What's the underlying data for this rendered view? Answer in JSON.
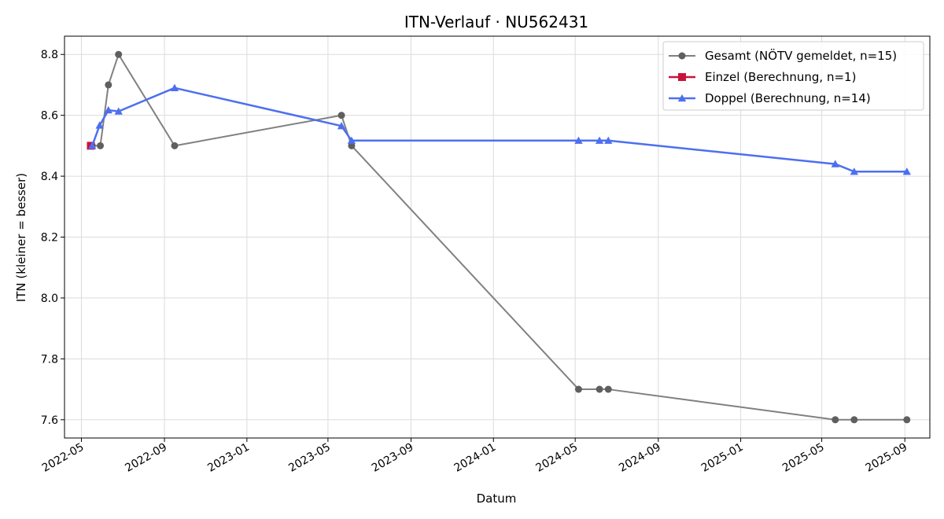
{
  "chart_data": {
    "type": "line",
    "title": "ITN-Verlauf · NU562431",
    "xlabel": "Datum",
    "ylabel": "ITN  (kleiner = besser)",
    "x_type": "date",
    "xlim": [
      "2022-04-06",
      "2025-10-08"
    ],
    "ylim": [
      7.54,
      8.86
    ],
    "x_ticks": [
      "2022-05-01",
      "2022-09-01",
      "2023-01-01",
      "2023-05-01",
      "2023-09-01",
      "2024-01-01",
      "2024-05-01",
      "2024-09-01",
      "2025-01-01",
      "2025-05-01",
      "2025-09-01"
    ],
    "x_tick_labels": [
      "2022-05",
      "2022-09",
      "2023-01",
      "2023-05",
      "2023-09",
      "2024-01",
      "2024-05",
      "2024-09",
      "2025-01",
      "2025-05",
      "2025-09"
    ],
    "y_ticks": [
      7.6,
      7.8,
      8.0,
      8.2,
      8.4,
      8.6,
      8.8
    ],
    "y_tick_labels": [
      "7.6",
      "7.8",
      "8.0",
      "8.2",
      "8.4",
      "8.6",
      "8.8"
    ],
    "grid": true,
    "legend_position": "top-right",
    "series": [
      {
        "name": "Gesamt (NÖTV gemeldet, n=15)",
        "color": "#808080",
        "marker": "circle",
        "points": [
          {
            "x": "2022-05-17",
            "y": 8.5
          },
          {
            "x": "2022-05-29",
            "y": 8.5
          },
          {
            "x": "2022-06-10",
            "y": 8.7
          },
          {
            "x": "2022-06-25",
            "y": 8.8
          },
          {
            "x": "2022-09-16",
            "y": 8.5
          },
          {
            "x": "2023-05-21",
            "y": 8.6
          },
          {
            "x": "2023-06-05",
            "y": 8.5
          },
          {
            "x": "2024-05-06",
            "y": 7.7
          },
          {
            "x": "2024-06-06",
            "y": 7.7
          },
          {
            "x": "2024-06-19",
            "y": 7.7
          },
          {
            "x": "2025-05-21",
            "y": 7.6
          },
          {
            "x": "2025-06-18",
            "y": 7.6
          },
          {
            "x": "2025-09-04",
            "y": 7.6
          }
        ]
      },
      {
        "name": "Einzel (Berechnung, n=1)",
        "color": "#c8143c",
        "marker": "square",
        "points": [
          {
            "x": "2022-05-15",
            "y": 8.5
          }
        ]
      },
      {
        "name": "Doppel (Berechnung, n=14)",
        "color": "#4d6fef",
        "marker": "triangle",
        "points": [
          {
            "x": "2022-05-17",
            "y": 8.5
          },
          {
            "x": "2022-05-28",
            "y": 8.567
          },
          {
            "x": "2022-06-10",
            "y": 8.617
          },
          {
            "x": "2022-06-25",
            "y": 8.613
          },
          {
            "x": "2022-09-16",
            "y": 8.69
          },
          {
            "x": "2023-05-21",
            "y": 8.565
          },
          {
            "x": "2023-06-05",
            "y": 8.517
          },
          {
            "x": "2024-05-06",
            "y": 8.517
          },
          {
            "x": "2024-06-06",
            "y": 8.517
          },
          {
            "x": "2024-06-19",
            "y": 8.517
          },
          {
            "x": "2025-05-21",
            "y": 8.44
          },
          {
            "x": "2025-06-18",
            "y": 8.415
          },
          {
            "x": "2025-09-04",
            "y": 8.415
          }
        ]
      }
    ]
  }
}
